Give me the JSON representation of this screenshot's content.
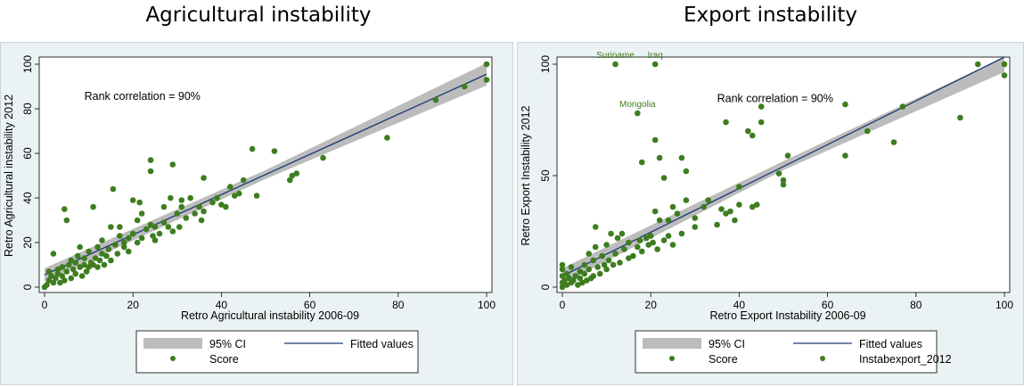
{
  "chart_data": [
    {
      "type": "scatter",
      "title": "Agricultural instability",
      "xlabel": "Retro Agricultural instability 2006-09",
      "ylabel": "Retro Agricultural instability 2012",
      "xlim": [
        0,
        100
      ],
      "ylim": [
        0,
        100
      ],
      "xticks": [
        "0",
        "20",
        "40",
        "60",
        "80",
        "100"
      ],
      "yticks": [
        "0",
        "20",
        "40",
        "60",
        "80",
        "100"
      ],
      "annotation": "Rank correlation = 90%",
      "grid": false,
      "legend_position": "bottom",
      "legend": [
        "95% CI",
        "Fitted values",
        "Score"
      ],
      "fit": {
        "x": [
          0,
          100
        ],
        "y": [
          5.5,
          95.5
        ]
      },
      "ci_band": {
        "x": [
          0,
          50,
          100
        ],
        "lower": [
          2.5,
          48.5,
          90.5
        ],
        "upper": [
          8.5,
          52.5,
          100.5
        ]
      },
      "series": [
        {
          "name": "Score",
          "color": "#3e7d1f",
          "points": [
            [
              0,
              0
            ],
            [
              0.5,
              1
            ],
            [
              1,
              3
            ],
            [
              1,
              7
            ],
            [
              1.5,
              5
            ],
            [
              2,
              2
            ],
            [
              2,
              15
            ],
            [
              2.5,
              4
            ],
            [
              3,
              8
            ],
            [
              3,
              6
            ],
            [
              3.5,
              2
            ],
            [
              4,
              5
            ],
            [
              4,
              9
            ],
            [
              4.5,
              3
            ],
            [
              4.5,
              35
            ],
            [
              5,
              30
            ],
            [
              5,
              7
            ],
            [
              5.5,
              10
            ],
            [
              6,
              4
            ],
            [
              6,
              12
            ],
            [
              6.5,
              8
            ],
            [
              7,
              6
            ],
            [
              7,
              11
            ],
            [
              7.5,
              14
            ],
            [
              8,
              9
            ],
            [
              8,
              18
            ],
            [
              8.5,
              5
            ],
            [
              9,
              10
            ],
            [
              9,
              13
            ],
            [
              9.5,
              7
            ],
            [
              10,
              9
            ],
            [
              10,
              16
            ],
            [
              10.5,
              11
            ],
            [
              11,
              10
            ],
            [
              11,
              36
            ],
            [
              11.5,
              13
            ],
            [
              12,
              9
            ],
            [
              12,
              18
            ],
            [
              12.5,
              12
            ],
            [
              13,
              15
            ],
            [
              13,
              21
            ],
            [
              13.5,
              10
            ],
            [
              14,
              14
            ],
            [
              14.5,
              17
            ],
            [
              15,
              12
            ],
            [
              15,
              27
            ],
            [
              15.5,
              44
            ],
            [
              16,
              19
            ],
            [
              16.5,
              15
            ],
            [
              17,
              23
            ],
            [
              17,
              27
            ],
            [
              18,
              18
            ],
            [
              18,
              20
            ],
            [
              19,
              16
            ],
            [
              19,
              22
            ],
            [
              20,
              24
            ],
            [
              20,
              39
            ],
            [
              21,
              20
            ],
            [
              21,
              30
            ],
            [
              21.5,
              38
            ],
            [
              22,
              22
            ],
            [
              22,
              33
            ],
            [
              23,
              26
            ],
            [
              24,
              57
            ],
            [
              24,
              52
            ],
            [
              24,
              28
            ],
            [
              24.5,
              23
            ],
            [
              25,
              21
            ],
            [
              25,
              27
            ],
            [
              26,
              24
            ],
            [
              27,
              29
            ],
            [
              27,
              36
            ],
            [
              28,
              27
            ],
            [
              28.5,
              40
            ],
            [
              29,
              55
            ],
            [
              29,
              25
            ],
            [
              30,
              33
            ],
            [
              30.5,
              27
            ],
            [
              31,
              36
            ],
            [
              31,
              39
            ],
            [
              32,
              31
            ],
            [
              33,
              40
            ],
            [
              34,
              33
            ],
            [
              35,
              36
            ],
            [
              35.5,
              30
            ],
            [
              36,
              49
            ],
            [
              36,
              34
            ],
            [
              38,
              38
            ],
            [
              39,
              40
            ],
            [
              40,
              37
            ],
            [
              41,
              36
            ],
            [
              42,
              45
            ],
            [
              43,
              41
            ],
            [
              44,
              42
            ],
            [
              45,
              48
            ],
            [
              47,
              62
            ],
            [
              48,
              41
            ],
            [
              52,
              61
            ],
            [
              55.5,
              48
            ],
            [
              56,
              50
            ],
            [
              57,
              51
            ],
            [
              63,
              58
            ],
            [
              77.5,
              67
            ],
            [
              88.5,
              84
            ],
            [
              95,
              90
            ],
            [
              100,
              100
            ],
            [
              100,
              93
            ]
          ]
        }
      ]
    },
    {
      "type": "scatter",
      "title": "Export instability",
      "xlabel": "Retro Export Instability 2006-09",
      "ylabel": "Retro Export Instability 2012",
      "xlim": [
        0,
        100
      ],
      "ylim": [
        0,
        100
      ],
      "xticks": [
        "0",
        "20",
        "40",
        "60",
        "80",
        "100"
      ],
      "yticks": [
        "0",
        "50",
        "100"
      ],
      "annotation": "Rank correlation = 90%",
      "grid": false,
      "legend_position": "bottom",
      "legend": [
        "95% CI",
        "Fitted values",
        "Score",
        "Instabexport_2012"
      ],
      "fit": {
        "x": [
          0,
          100
        ],
        "y": [
          5,
          103.5
        ]
      },
      "ci_band": {
        "x": [
          0,
          50,
          100
        ],
        "lower": [
          1.5,
          52.5,
          96.5
        ],
        "upper": [
          8.5,
          56.5,
          110.5
        ]
      },
      "labels": [
        {
          "text": "Suriname",
          "x": 12,
          "y": 100
        },
        {
          "text": "Iraq",
          "x": 21,
          "y": 100
        },
        {
          "text": "Mongolia",
          "x": 17,
          "y": 78
        }
      ],
      "series": [
        {
          "name": "Score",
          "color": "#3e7d1f",
          "points": [
            [
              12,
              100
            ],
            [
              21,
              100
            ],
            [
              17,
              78
            ]
          ]
        },
        {
          "name": "Instabexport_2012",
          "color": "#3e7d1f",
          "points": [
            [
              0,
              0
            ],
            [
              0,
              2
            ],
            [
              0,
              5
            ],
            [
              0,
              8
            ],
            [
              0,
              10
            ],
            [
              0.5,
              3
            ],
            [
              1,
              1
            ],
            [
              1,
              6
            ],
            [
              1.5,
              4
            ],
            [
              2,
              2
            ],
            [
              2,
              9
            ],
            [
              2.5,
              3
            ],
            [
              3,
              5
            ],
            [
              3.5,
              1
            ],
            [
              4,
              4
            ],
            [
              4,
              7
            ],
            [
              4.5,
              2
            ],
            [
              5,
              6
            ],
            [
              5,
              10
            ],
            [
              5.5,
              3
            ],
            [
              6,
              8
            ],
            [
              6,
              15
            ],
            [
              6.5,
              4
            ],
            [
              7,
              12
            ],
            [
              7,
              5
            ],
            [
              7.5,
              18
            ],
            [
              7.5,
              27
            ],
            [
              8,
              9
            ],
            [
              8.5,
              6
            ],
            [
              9,
              14
            ],
            [
              9.5,
              10
            ],
            [
              10,
              8
            ],
            [
              10,
              19
            ],
            [
              10.5,
              12
            ],
            [
              11,
              24
            ],
            [
              11.5,
              10
            ],
            [
              12,
              15
            ],
            [
              12.5,
              22
            ],
            [
              13,
              11
            ],
            [
              13.5,
              24
            ],
            [
              14,
              17
            ],
            [
              15,
              13
            ],
            [
              15,
              20
            ],
            [
              16,
              14
            ],
            [
              17,
              18
            ],
            [
              17.5,
              21
            ],
            [
              18,
              56
            ],
            [
              18,
              16
            ],
            [
              19,
              22
            ],
            [
              19.5,
              19
            ],
            [
              20,
              23
            ],
            [
              20.5,
              20
            ],
            [
              21,
              66
            ],
            [
              21,
              34
            ],
            [
              21.5,
              17
            ],
            [
              22,
              30
            ],
            [
              22,
              58
            ],
            [
              23,
              21
            ],
            [
              23,
              49
            ],
            [
              24,
              23
            ],
            [
              24,
              30
            ],
            [
              25,
              19
            ],
            [
              25,
              36
            ],
            [
              26,
              33
            ],
            [
              27,
              58
            ],
            [
              27,
              24
            ],
            [
              28,
              52
            ],
            [
              28,
              39
            ],
            [
              30,
              27
            ],
            [
              30,
              31
            ],
            [
              32,
              36
            ],
            [
              33,
              39
            ],
            [
              35,
              28
            ],
            [
              36,
              35
            ],
            [
              37,
              74
            ],
            [
              37,
              33
            ],
            [
              38,
              34
            ],
            [
              39,
              30
            ],
            [
              40,
              45
            ],
            [
              40,
              37
            ],
            [
              42,
              70
            ],
            [
              43,
              68
            ],
            [
              43,
              36
            ],
            [
              44,
              37
            ],
            [
              45,
              81
            ],
            [
              45,
              74
            ],
            [
              49,
              51
            ],
            [
              50,
              48
            ],
            [
              50,
              46
            ],
            [
              51,
              59
            ],
            [
              64,
              82
            ],
            [
              64,
              59
            ],
            [
              69,
              70
            ],
            [
              75,
              65
            ],
            [
              77,
              81
            ],
            [
              90,
              76
            ],
            [
              94,
              100
            ],
            [
              100,
              100
            ],
            [
              100,
              95
            ]
          ]
        }
      ]
    }
  ]
}
